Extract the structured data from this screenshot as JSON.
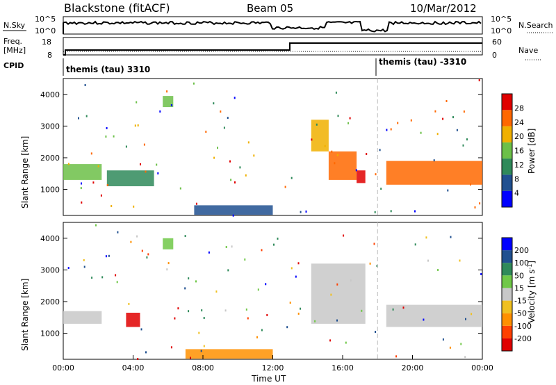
{
  "header": {
    "station": "Blackstone (fitACF)",
    "beam": "Beam 05",
    "date": "10/Mar/2012"
  },
  "noise_panel": {
    "left_label": "N.Sky",
    "left_ticks": [
      "10^5",
      "10^0"
    ],
    "right_label": "N.Search",
    "right_ticks": [
      "10^5",
      "10^0"
    ]
  },
  "freq_panel": {
    "left_label_1": "Freq.",
    "left_label_2": "[MHz]",
    "left_ticks": [
      "18",
      "8"
    ],
    "right_label": "Nave",
    "right_ticks": [
      "60",
      "0"
    ],
    "cpid_label": "CPID"
  },
  "cpid": [
    {
      "name": "themis (tau) 3310"
    },
    {
      "name": "themis (tau) -3310"
    }
  ],
  "chart_data": [
    {
      "type": "heatmap",
      "name": "power",
      "ylabel": "Slant Range [km]",
      "yticks": [
        "4000",
        "3000",
        "2000",
        "1000"
      ],
      "ylim": [
        180,
        4500
      ],
      "colorbar_label": "Power [dB]",
      "colorbar_ticks": [
        "28",
        "24",
        "20",
        "16",
        "12",
        "8",
        "4"
      ],
      "colors": [
        "#0000ff",
        "#205090",
        "#2f8a5a",
        "#6cc048",
        "#f0b000",
        "#ff6800",
        "#e00000"
      ],
      "regions": [
        {
          "x": [
            0.0,
            2.2
          ],
          "y": [
            1300,
            1800
          ],
          "level": 3
        },
        {
          "x": [
            2.5,
            5.2
          ],
          "y": [
            1100,
            1600
          ],
          "level": 2
        },
        {
          "x": [
            5.7,
            6.3
          ],
          "y": [
            3600,
            3950
          ],
          "level": 3
        },
        {
          "x": [
            14.2,
            15.2
          ],
          "y": [
            2200,
            3200
          ],
          "level": 4
        },
        {
          "x": [
            15.2,
            16.8
          ],
          "y": [
            1300,
            2200
          ],
          "level": 5
        },
        {
          "x": [
            16.8,
            17.3
          ],
          "y": [
            1200,
            1600
          ],
          "level": 6
        },
        {
          "x": [
            18.5,
            24.0
          ],
          "y": [
            1150,
            1900
          ],
          "level": 5
        },
        {
          "x": [
            7.5,
            12.0
          ],
          "y": [
            200,
            500
          ],
          "level": 1
        }
      ]
    },
    {
      "type": "heatmap",
      "name": "velocity",
      "ylabel": "Slant Range [km]",
      "yticks": [
        "4000",
        "3000",
        "2000",
        "1000"
      ],
      "ylim": [
        180,
        4500
      ],
      "xlabel": "Time UT",
      "xticks": [
        "00:00",
        "04:00",
        "08:00",
        "12:00",
        "16:00",
        "20:00",
        "00:00"
      ],
      "xlim": [
        0,
        24
      ],
      "colorbar_label": "Velocity [m s^-1]",
      "colorbar_ticks": [
        "200",
        "100",
        "50",
        "15",
        "-15",
        "-50",
        "-100",
        "-200"
      ],
      "colors": [
        "#e00000",
        "#ff4000",
        "#ff9000",
        "#f0c020",
        "#c8c8c8",
        "#70c848",
        "#2f8a5a",
        "#205090",
        "#0000ff"
      ],
      "regions": [
        {
          "x": [
            0.0,
            2.2
          ],
          "y": [
            1300,
            1700
          ],
          "level": 4
        },
        {
          "x": [
            3.6,
            4.4
          ],
          "y": [
            1200,
            1650
          ],
          "level": 0
        },
        {
          "x": [
            5.7,
            6.3
          ],
          "y": [
            3650,
            4000
          ],
          "level": 5
        },
        {
          "x": [
            14.2,
            17.3
          ],
          "y": [
            1300,
            3200
          ],
          "level": 4
        },
        {
          "x": [
            18.5,
            24.0
          ],
          "y": [
            1200,
            1900
          ],
          "level": 4
        },
        {
          "x": [
            7.0,
            12.0
          ],
          "y": [
            200,
            500
          ],
          "level": 2
        }
      ]
    }
  ]
}
